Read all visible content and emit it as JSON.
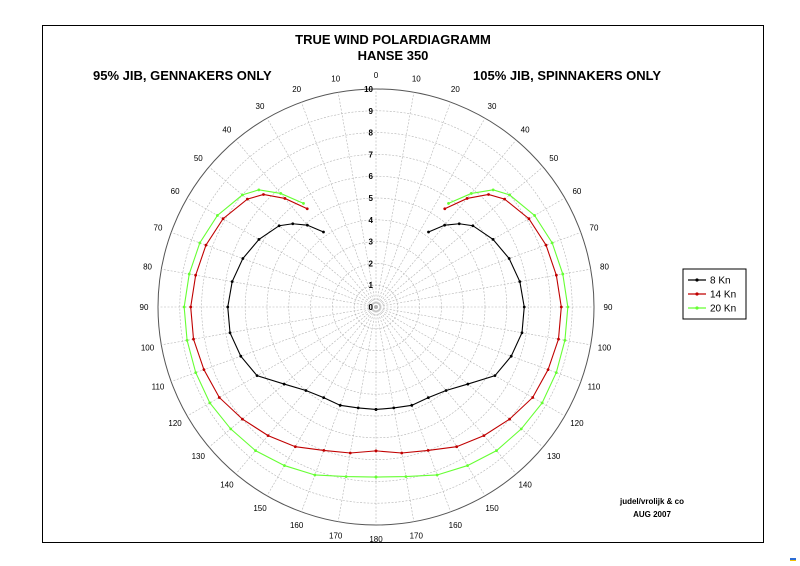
{
  "chart_data": {
    "type": "polar-line",
    "title": "TRUE WIND POLARDIAGRAMM",
    "subtitle": "HANSE 350",
    "left_heading": "95% JIB, GENNAKERS ONLY",
    "right_heading": "105% JIB, SPINNAKERS ONLY",
    "r_ticks": [
      "0",
      "1",
      "2",
      "3",
      "4",
      "5",
      "6",
      "7",
      "8",
      "9",
      "10"
    ],
    "rlim": [
      0,
      10
    ],
    "angle_ticks_right": [
      "0",
      "10",
      "20",
      "30",
      "40",
      "50",
      "60",
      "70",
      "80",
      "90",
      "100",
      "110",
      "120",
      "130",
      "140",
      "150",
      "160",
      "170",
      "180"
    ],
    "angle_ticks_left": [
      "10",
      "20",
      "30",
      "40",
      "50",
      "60",
      "70",
      "80",
      "90",
      "100",
      "110",
      "120",
      "130",
      "140",
      "150",
      "160",
      "170"
    ],
    "angles": [
      35,
      40,
      45,
      50,
      60,
      70,
      80,
      90,
      100,
      110,
      120,
      130,
      140,
      150,
      160,
      170,
      180
    ],
    "series": [
      {
        "name": "8 Kn",
        "color": "#000000",
        "values": [
          4.2,
          4.9,
          5.4,
          5.8,
          6.2,
          6.5,
          6.7,
          6.8,
          6.8,
          6.6,
          6.3,
          5.5,
          5.0,
          4.8,
          4.8,
          4.7,
          4.7
        ]
      },
      {
        "name": "14 Kn",
        "color": "#c00000",
        "values": [
          5.5,
          6.5,
          7.3,
          7.7,
          8.1,
          8.3,
          8.4,
          8.5,
          8.5,
          8.4,
          8.3,
          8.0,
          7.7,
          7.4,
          7.0,
          6.8,
          6.6
        ]
      },
      {
        "name": "20 Kn",
        "color": "#66ff33",
        "values": [
          5.8,
          6.8,
          7.6,
          8.0,
          8.4,
          8.6,
          8.7,
          8.8,
          8.8,
          8.8,
          8.8,
          8.7,
          8.6,
          8.4,
          8.2,
          7.9,
          7.8
        ]
      }
    ],
    "legend_position": "right",
    "grid": true
  },
  "credit": {
    "line1": "judel/vrolijk & co",
    "line2": "AUG 2007"
  },
  "colors": {
    "grid": "#b4b4b4",
    "frame": "#000000"
  }
}
